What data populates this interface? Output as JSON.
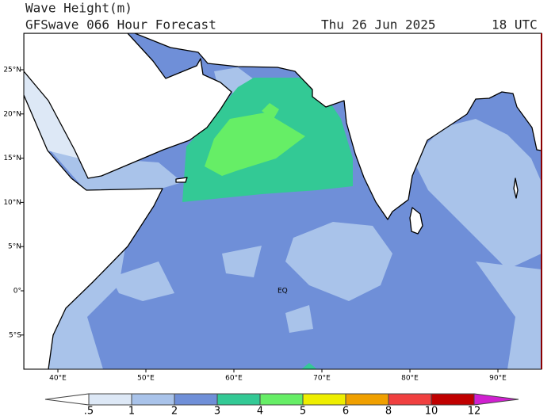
{
  "header": {
    "title": "Wave Height(m)",
    "subtitle": "GFSwave 066 Hour Forecast",
    "date": "Thu 26 Jun 2025",
    "time": "18 UTC"
  },
  "map": {
    "lat_labels": [
      "25°N",
      "20°N",
      "15°N",
      "10°N",
      "5°N",
      "0°",
      "5°S"
    ],
    "lon_labels": [
      "40°E",
      "50°E",
      "60°E",
      "70°E",
      "80°E",
      "90°E"
    ],
    "annotation": "EQ"
  },
  "colorbar": {
    "labels": [
      ".5",
      "1",
      "2",
      "3",
      "4",
      "5",
      "6",
      "8",
      "10",
      "12"
    ],
    "colors": [
      "#ffffff",
      "#dde8f6",
      "#a9c3ea",
      "#6f8fd8",
      "#33c995",
      "#66ee66",
      "#eeee00",
      "#f0a000",
      "#f04040",
      "#c00000",
      "#d020d0"
    ]
  }
}
